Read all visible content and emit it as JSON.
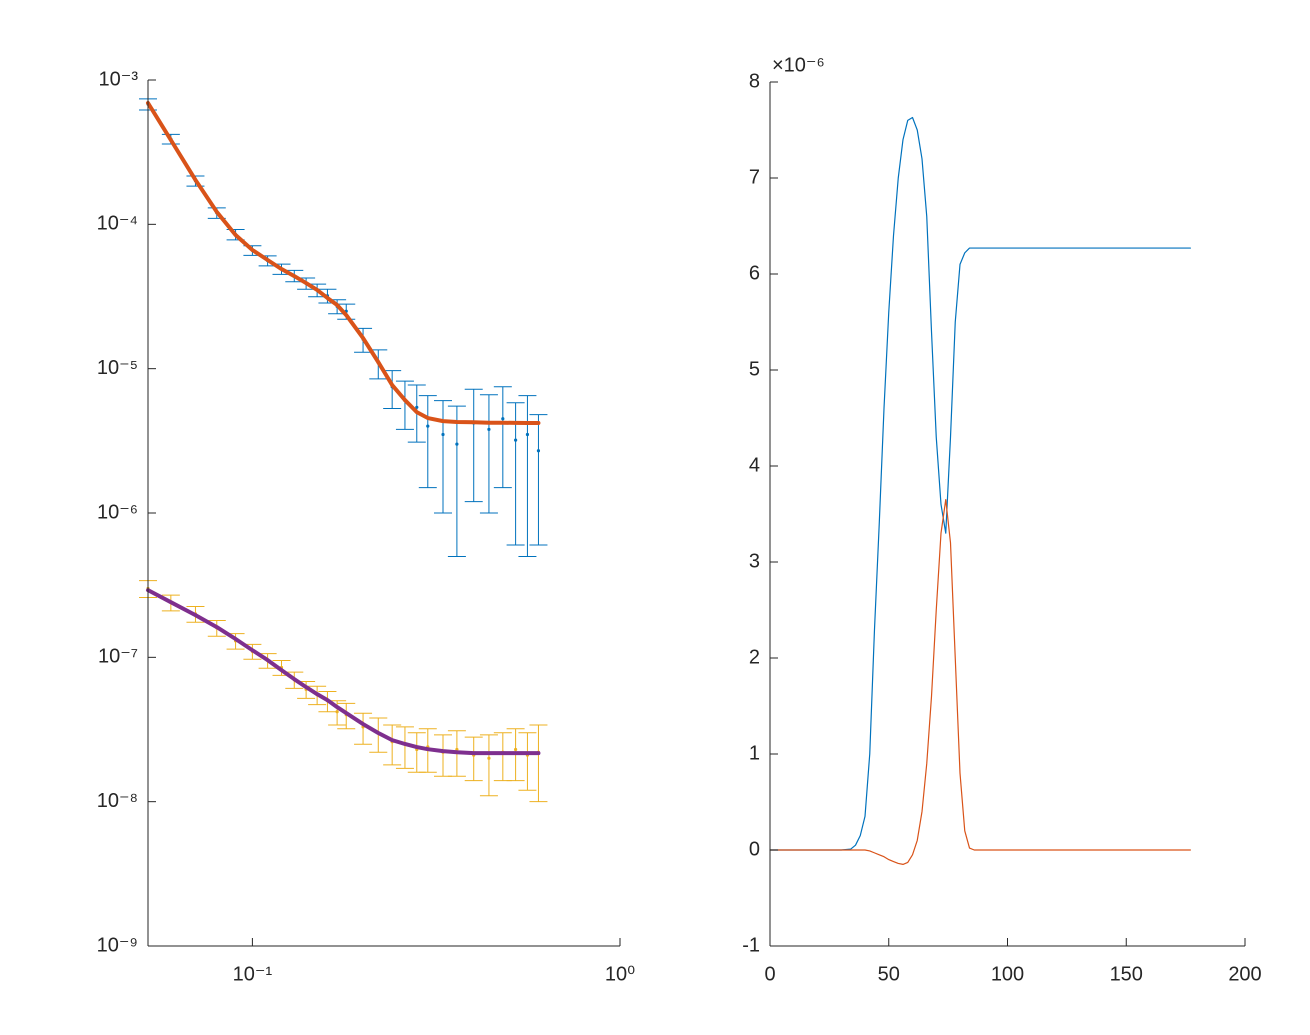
{
  "chart_data": [
    {
      "type": "errorbar",
      "xscale": "log",
      "yscale": "log",
      "xlim": [
        0.052,
        1
      ],
      "xticks": [
        {
          "value": 0.1,
          "label": "10⁻¹"
        },
        {
          "value": 1,
          "label": "10⁰"
        }
      ],
      "ylim": [
        1e-09,
        0.001
      ],
      "yticks": [
        {
          "value": 1e-09,
          "label": "10⁻⁹"
        },
        {
          "value": 1e-08,
          "label": "10⁻⁸"
        },
        {
          "value": 1e-07,
          "label": "10⁻⁷"
        },
        {
          "value": 1e-06,
          "label": "10⁻⁶"
        },
        {
          "value": 1e-05,
          "label": "10⁻⁵"
        },
        {
          "value": 0.0001,
          "label": "10⁻⁴"
        },
        {
          "value": 0.001,
          "label": "10⁻³"
        }
      ],
      "x": [
        0.052,
        0.06,
        0.07,
        0.08,
        0.09,
        0.1,
        0.11,
        0.12,
        0.13,
        0.14,
        0.15,
        0.16,
        0.17,
        0.18,
        0.2,
        0.22,
        0.24,
        0.26,
        0.28,
        0.3,
        0.33,
        0.36,
        0.4,
        0.44,
        0.48,
        0.52,
        0.56,
        0.6
      ],
      "series": [
        {
          "style": "errorbar",
          "color": "#0072BD",
          "values": [
            0.00068,
            0.00039,
            0.0002,
            0.00012,
            8.5e-05,
            6.6e-05,
            5.6e-05,
            4.9e-05,
            4.4e-05,
            3.9e-05,
            3.5e-05,
            3.2e-05,
            2.7e-05,
            2.5e-05,
            1.6e-05,
            1.1e-05,
            7.5e-06,
            6e-06,
            5.4e-06,
            4e-06,
            3.5e-06,
            3e-06,
            4.2e-06,
            3.8e-06,
            4.5e-06,
            3.2e-06,
            3.5e-06,
            2.7e-06
          ],
          "errors": [
            6e-05,
            3e-05,
            1.6e-05,
            1e-05,
            7e-06,
            5e-06,
            4.5e-06,
            4e-06,
            4e-06,
            3.5e-06,
            3.5e-06,
            3.5e-06,
            3e-06,
            3e-06,
            3e-06,
            2.5e-06,
            2.2e-06,
            2.2e-06,
            2.3e-06,
            2.5e-06,
            2.5e-06,
            2.5e-06,
            3e-06,
            2.8e-06,
            3e-06,
            2.6e-06,
            3e-06,
            2.1e-06
          ]
        },
        {
          "style": "line",
          "color": "#D95319",
          "line_width": 4,
          "values": [
            0.000693,
            0.000384,
            0.000203,
            0.000122,
            8.43e-05,
            6.64e-05,
            5.66e-05,
            4.9e-05,
            4.38e-05,
            3.92e-05,
            3.51e-05,
            3.09e-05,
            2.76e-05,
            2.35e-05,
            1.63e-05,
            1.11e-05,
            7.7e-06,
            6.06e-06,
            5e-06,
            4.55e-06,
            4.33e-06,
            4.27e-06,
            4.25e-06,
            4.22e-06,
            4.22e-06,
            4.21e-06,
            4.2e-06,
            4.2e-06
          ]
        },
        {
          "style": "errorbar",
          "color": "#EDB120",
          "values": [
            3e-07,
            2.4e-07,
            2e-07,
            1.6e-07,
            1.3e-07,
            1.1e-07,
            9.5e-08,
            8.5e-08,
            7e-08,
            6e-08,
            5.5e-08,
            5e-08,
            4.2e-08,
            4e-08,
            3.3e-08,
            3e-08,
            2.6e-08,
            2.5e-08,
            2.3e-08,
            2.4e-08,
            2.2e-08,
            2.3e-08,
            2.1e-08,
            2e-08,
            2.2e-08,
            2.3e-08,
            2.1e-08,
            2.2e-08
          ],
          "errors": [
            4e-08,
            3e-08,
            2.5e-08,
            2e-08,
            1.6e-08,
            1.3e-08,
            1.1e-08,
            1e-08,
            9e-09,
            8e-09,
            8e-09,
            8e-09,
            8e-09,
            8e-09,
            8e-09,
            8e-09,
            8e-09,
            8e-09,
            7e-09,
            8e-09,
            7e-09,
            8e-09,
            7e-09,
            9e-09,
            8e-09,
            9e-09,
            9e-09,
            1.2e-08
          ]
        },
        {
          "style": "line",
          "color": "#7E2F8E",
          "line_width": 4,
          "values": [
            2.92e-07,
            2.41e-07,
            1.96e-07,
            1.62e-07,
            1.34e-07,
            1.12e-07,
            9.57e-08,
            8.15e-08,
            7.06e-08,
            6.22e-08,
            5.56e-08,
            5.05e-08,
            4.52e-08,
            4.11e-08,
            3.45e-08,
            2.99e-08,
            2.67e-08,
            2.51e-08,
            2.39e-08,
            2.31e-08,
            2.24e-08,
            2.2e-08,
            2.17e-08,
            2.17e-08,
            2.17e-08,
            2.17e-08,
            2.17e-08,
            2.17e-08
          ]
        }
      ]
    },
    {
      "type": "line",
      "annotation": "×10⁻⁶",
      "xlim": [
        0,
        200
      ],
      "xticks": [
        0,
        50,
        100,
        150,
        200
      ],
      "ylim": [
        -1,
        8
      ],
      "yticks": [
        -1,
        0,
        1,
        2,
        3,
        4,
        5,
        6,
        7,
        8
      ],
      "x": [
        0,
        10,
        20,
        30,
        34,
        36,
        38,
        40,
        42,
        44,
        46,
        48,
        50,
        52,
        54,
        56,
        58,
        60,
        62,
        64,
        66,
        68,
        70,
        72,
        74,
        76,
        78,
        80,
        82,
        84,
        86,
        90,
        100,
        120,
        140,
        160,
        177
      ],
      "series": [
        {
          "style": "line",
          "color": "#0072BD",
          "line_width": 1.2,
          "values": [
            0,
            0,
            0,
            0,
            0.01,
            0.05,
            0.15,
            0.35,
            1.0,
            2.3,
            3.4,
            4.6,
            5.6,
            6.4,
            7.0,
            7.4,
            7.6,
            7.63,
            7.5,
            7.2,
            6.6,
            5.4,
            4.3,
            3.6,
            3.3,
            4.3,
            5.5,
            6.1,
            6.22,
            6.27,
            6.27,
            6.27,
            6.27,
            6.27,
            6.27,
            6.27,
            6.27
          ]
        },
        {
          "style": "line",
          "color": "#D95319",
          "line_width": 1.2,
          "values": [
            0,
            0,
            0,
            0,
            0,
            0,
            0,
            0,
            -0.01,
            -0.03,
            -0.05,
            -0.07,
            -0.1,
            -0.12,
            -0.14,
            -0.15,
            -0.13,
            -0.05,
            0.1,
            0.4,
            0.9,
            1.6,
            2.5,
            3.3,
            3.65,
            3.2,
            2.0,
            0.8,
            0.2,
            0.02,
            0,
            0,
            0,
            0,
            0,
            0,
            0
          ]
        }
      ]
    }
  ]
}
